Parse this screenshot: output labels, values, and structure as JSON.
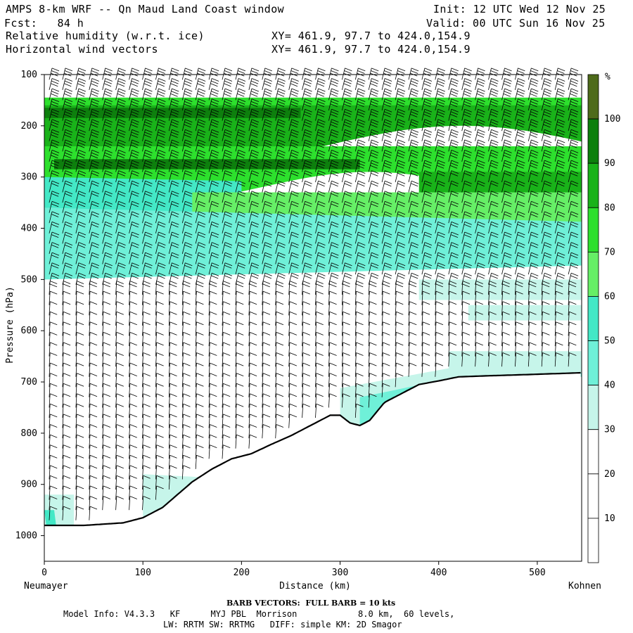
{
  "header": {
    "title": "AMPS 8-km WRF -- Qn Maud Land Coast window",
    "init": "Init: 12 UTC Wed 12 Nov 25",
    "forecast": "Fcst:   84 h",
    "valid": "Valid: 00 UTC Sun 16 Nov 25",
    "field1": "Relative humidity (w.r.t. ice)",
    "field2": "Horizontal wind vectors",
    "xy1": "XY= 461.9, 97.7 to 424.0,154.9",
    "xy2": "XY= 461.9, 97.7 to 424.0,154.9"
  },
  "footer": {
    "barb_note": "BARB VECTORS:  FULL BARB = 10 kts",
    "model_info_1": "Model Info: V4.3.3   KF      MYJ PBL  Morrison            8.0 km,  60 levels,",
    "model_info_2": "LW: RRTM SW: RRTMG   DIFF: simple KM: 2D Smagor"
  },
  "chart_data": {
    "type": "heatmap",
    "title": "Relative humidity (w.r.t. ice) cross-section with horizontal wind barbs",
    "xlabel": "Distance (km)",
    "ylabel": "Pressure (hPa)",
    "xlim": [
      0,
      545
    ],
    "ylim": [
      1050,
      100
    ],
    "x_ticks": [
      0,
      100,
      200,
      300,
      400,
      500
    ],
    "y_ticks": [
      100,
      200,
      300,
      400,
      500,
      600,
      700,
      800,
      900,
      1000
    ],
    "left_endpoint": "Neumayer",
    "right_endpoint": "Kohnen",
    "colorbar": {
      "unit": "%",
      "levels": [
        10,
        20,
        30,
        40,
        50,
        60,
        70,
        80,
        90,
        100
      ],
      "colors": [
        "#ffffff",
        "#ffffff",
        "#ffffff",
        "#c6f5ea",
        "#6ff0d8",
        "#43e8c6",
        "#66ef66",
        "#2de02d",
        "#19b219",
        "#0d7f0d",
        "#4e6b1b"
      ]
    },
    "terrain_pressure_profile": [
      [
        0,
        980
      ],
      [
        40,
        980
      ],
      [
        80,
        975
      ],
      [
        100,
        965
      ],
      [
        120,
        945
      ],
      [
        135,
        920
      ],
      [
        150,
        895
      ],
      [
        170,
        870
      ],
      [
        190,
        850
      ],
      [
        210,
        840
      ],
      [
        230,
        822
      ],
      [
        250,
        805
      ],
      [
        270,
        785
      ],
      [
        290,
        765
      ],
      [
        300,
        765
      ],
      [
        310,
        780
      ],
      [
        320,
        785
      ],
      [
        330,
        775
      ],
      [
        345,
        740
      ],
      [
        360,
        725
      ],
      [
        380,
        705
      ],
      [
        400,
        698
      ],
      [
        420,
        690
      ],
      [
        450,
        688
      ],
      [
        500,
        685
      ],
      [
        545,
        682
      ]
    ],
    "rh_layers_pct": [
      {
        "range_hpa": [
          150,
          190
        ],
        "rh": "70-90"
      },
      {
        "range_hpa": [
          260,
          280
        ],
        "rh": "90-100"
      },
      {
        "range_hpa": [
          200,
          380
        ],
        "rh": "60-90"
      },
      {
        "range_hpa": [
          380,
          520
        ],
        "rh": "40-70"
      },
      {
        "range_hpa": [
          520,
          640
        ],
        "rh": "10-30"
      },
      {
        "range_hpa": [
          640,
          700
        ],
        "rh": "30-50"
      }
    ]
  }
}
